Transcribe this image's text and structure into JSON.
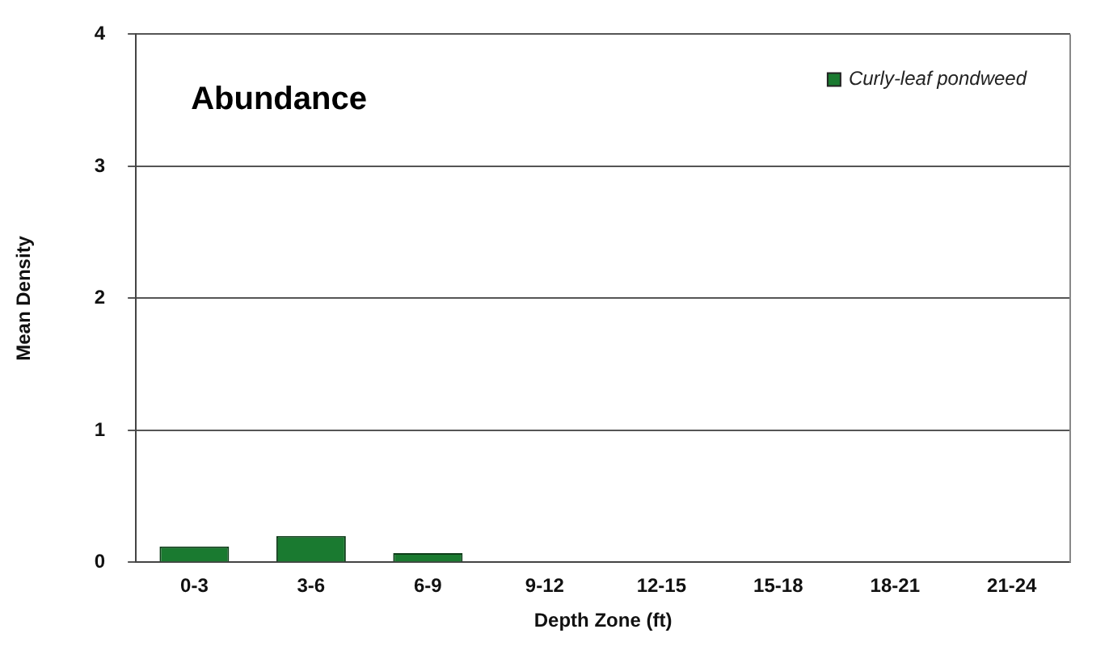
{
  "chart_data": {
    "type": "bar",
    "title": "Abundance",
    "xlabel": "Depth Zone (ft)",
    "ylabel": "Mean Density",
    "categories": [
      "0-3",
      "3-6",
      "6-9",
      "9-12",
      "12-15",
      "15-18",
      "18-21",
      "21-24"
    ],
    "series": [
      {
        "name": "Curly-leaf pondweed",
        "color": "#1a7a30",
        "values": [
          0.12,
          0.2,
          0.07,
          0,
          0,
          0,
          0,
          0
        ]
      }
    ],
    "ylim": [
      0,
      4
    ],
    "yticks": [
      0,
      1,
      2,
      3,
      4
    ],
    "grid": "y",
    "legend": "top right"
  }
}
